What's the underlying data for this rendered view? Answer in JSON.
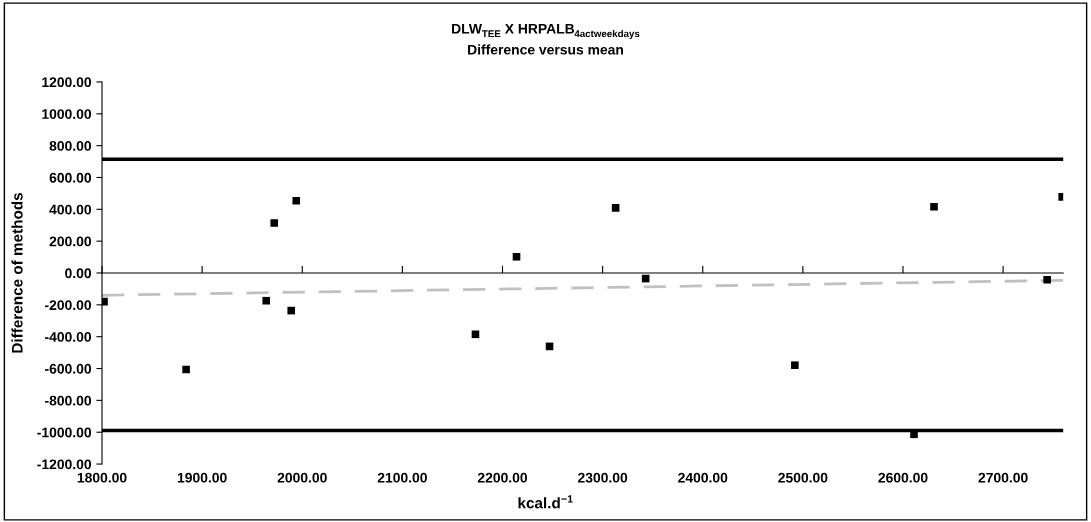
{
  "chart_data": {
    "type": "scatter",
    "title": "DLW$_{TEE}$ X HRPALB$_{4actweekdays}$",
    "subtitle": "Difference versus mean",
    "xlabel": "kcal.d$^{−1}$",
    "ylabel": "Difference of methods",
    "series": [
      {
        "color": "#000000",
        "marker": "square",
        "x": [
          1802,
          1884,
          1964,
          1972,
          1989,
          1994,
          2173,
          2214,
          2247,
          2313,
          2343,
          2492,
          2611,
          2631,
          2744,
          2759
        ],
        "values": [
          -180,
          -606,
          -174,
          314,
          -236,
          454,
          -385,
          102,
          -461,
          409,
          -35,
          -579,
          -1013,
          416,
          -42,
          478
        ]
      },
      {
        "type": "line",
        "color": "#c0c0c0",
        "line_style": "dashed",
        "marker": "none",
        "x": [
          1800,
          2760
        ],
        "values": [
          -140,
          -46
        ]
      }
    ],
    "ref_lines": [
      {
        "axis": "y",
        "value": 715,
        "color": "#000000"
      },
      {
        "axis": "y",
        "value": -989,
        "color": "#000000"
      }
    ],
    "xlim": [
      1800,
      2760
    ],
    "ylim": [
      -1200,
      1200
    ],
    "xticks": [
      {
        "value": 1800,
        "label": "1800.00"
      },
      {
        "value": 1900,
        "label": "1900.00"
      },
      {
        "value": 2000,
        "label": "2000.00"
      },
      {
        "value": 2100,
        "label": "2100.00"
      },
      {
        "value": 2200,
        "label": "2200.00"
      },
      {
        "value": 2300,
        "label": "2300.00"
      },
      {
        "value": 2400,
        "label": "2400.00"
      },
      {
        "value": 2500,
        "label": "2500.00"
      },
      {
        "value": 2600,
        "label": "2600.00"
      },
      {
        "value": 2700,
        "label": "2700.00"
      }
    ],
    "yticks": [
      {
        "value": -1200,
        "label": "-1200.00"
      },
      {
        "value": -1000,
        "label": "-1000.00"
      },
      {
        "value": -800,
        "label": "-800.00"
      },
      {
        "value": -600,
        "label": "-600.00"
      },
      {
        "value": -400,
        "label": "-400.00"
      },
      {
        "value": -200,
        "label": "-200.00"
      },
      {
        "value": 0,
        "label": "0.00"
      },
      {
        "value": 200,
        "label": "200.00"
      },
      {
        "value": 400,
        "label": "400.00"
      },
      {
        "value": 600,
        "label": "600.00"
      },
      {
        "value": 800,
        "label": "800.00"
      },
      {
        "value": 1000,
        "label": "1000.00"
      },
      {
        "value": 1200,
        "label": "1200.00"
      }
    ],
    "legend": false
  }
}
